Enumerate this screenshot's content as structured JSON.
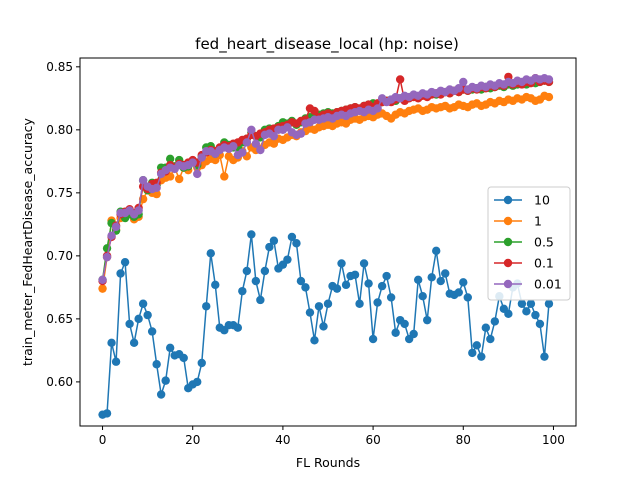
{
  "chart_data": {
    "type": "line",
    "title": "fed_heart_disease_local (hp: noise)",
    "xlabel": "FL Rounds",
    "ylabel": "train_meter_FedHeartDisease_accuracy",
    "xlim": [
      -5,
      105
    ],
    "ylim": [
      0.565,
      0.857
    ],
    "xticks": [
      0,
      20,
      40,
      60,
      80,
      100
    ],
    "yticks": [
      0.6,
      0.65,
      0.7,
      0.75,
      0.8,
      0.85
    ],
    "grid": false,
    "legend_position": "center-right",
    "marker": "circle",
    "series": [
      {
        "name": "10",
        "color": "#1f77b4",
        "x": [
          0,
          1,
          2,
          3,
          4,
          5,
          6,
          7,
          8,
          9,
          10,
          11,
          12,
          13,
          14,
          15,
          16,
          17,
          18,
          19,
          20,
          21,
          22,
          23,
          24,
          25,
          26,
          27,
          28,
          29,
          30,
          31,
          32,
          33,
          34,
          35,
          36,
          37,
          38,
          39,
          40,
          41,
          42,
          43,
          44,
          45,
          46,
          47,
          48,
          49,
          50,
          51,
          52,
          53,
          54,
          55,
          56,
          57,
          58,
          59,
          60,
          61,
          62,
          63,
          64,
          65,
          66,
          67,
          68,
          69,
          70,
          71,
          72,
          73,
          74,
          75,
          76,
          77,
          78,
          79,
          80,
          81,
          82,
          83,
          84,
          85,
          86,
          87,
          88,
          89,
          90,
          91,
          92,
          93,
          94,
          95,
          96,
          97,
          98,
          99
        ],
        "y": [
          0.574,
          0.575,
          0.631,
          0.616,
          0.686,
          0.695,
          0.646,
          0.631,
          0.65,
          0.662,
          0.653,
          0.64,
          0.614,
          0.59,
          0.601,
          0.627,
          0.621,
          0.622,
          0.619,
          0.595,
          0.598,
          0.6,
          0.615,
          0.66,
          0.702,
          0.677,
          0.643,
          0.641,
          0.645,
          0.645,
          0.643,
          0.672,
          0.688,
          0.717,
          0.68,
          0.665,
          0.688,
          0.707,
          0.712,
          0.69,
          0.693,
          0.697,
          0.715,
          0.71,
          0.68,
          0.675,
          0.655,
          0.633,
          0.66,
          0.644,
          0.662,
          0.676,
          0.674,
          0.694,
          0.677,
          0.684,
          0.685,
          0.662,
          0.694,
          0.678,
          0.634,
          0.663,
          0.676,
          0.684,
          0.667,
          0.639,
          0.649,
          0.646,
          0.634,
          0.638,
          0.681,
          0.668,
          0.649,
          0.683,
          0.704,
          0.68,
          0.686,
          0.67,
          0.669,
          0.671,
          0.679,
          0.667,
          0.623,
          0.629,
          0.62,
          0.643,
          0.634,
          0.648,
          0.668,
          0.658,
          0.654,
          0.675,
          0.678,
          0.662,
          0.656,
          0.662,
          0.653,
          0.646,
          0.62,
          0.662
        ]
      },
      {
        "name": "1",
        "color": "#ff7f0e",
        "x": [
          0,
          1,
          2,
          3,
          4,
          5,
          6,
          7,
          8,
          9,
          10,
          11,
          12,
          13,
          14,
          15,
          16,
          17,
          18,
          19,
          20,
          21,
          22,
          23,
          24,
          25,
          26,
          27,
          28,
          29,
          30,
          31,
          32,
          33,
          34,
          35,
          36,
          37,
          38,
          39,
          40,
          41,
          42,
          43,
          44,
          45,
          46,
          47,
          48,
          49,
          50,
          51,
          52,
          53,
          54,
          55,
          56,
          57,
          58,
          59,
          60,
          61,
          62,
          63,
          64,
          65,
          66,
          67,
          68,
          69,
          70,
          71,
          72,
          73,
          74,
          75,
          76,
          77,
          78,
          79,
          80,
          81,
          82,
          83,
          84,
          85,
          86,
          87,
          88,
          89,
          90,
          91,
          92,
          93,
          94,
          95,
          96,
          97,
          98,
          99
        ],
        "y": [
          0.674,
          0.699,
          0.728,
          0.721,
          0.73,
          0.733,
          0.736,
          0.729,
          0.731,
          0.745,
          0.752,
          0.75,
          0.749,
          0.76,
          0.762,
          0.763,
          0.77,
          0.761,
          0.77,
          0.768,
          0.775,
          0.77,
          0.772,
          0.775,
          0.777,
          0.776,
          0.78,
          0.763,
          0.779,
          0.776,
          0.778,
          0.783,
          0.779,
          0.786,
          0.784,
          0.785,
          0.788,
          0.79,
          0.789,
          0.793,
          0.792,
          0.794,
          0.796,
          0.795,
          0.798,
          0.799,
          0.801,
          0.8,
          0.802,
          0.803,
          0.804,
          0.803,
          0.805,
          0.806,
          0.805,
          0.808,
          0.809,
          0.808,
          0.81,
          0.811,
          0.81,
          0.812,
          0.813,
          0.811,
          0.809,
          0.812,
          0.814,
          0.813,
          0.815,
          0.816,
          0.817,
          0.815,
          0.816,
          0.818,
          0.817,
          0.818,
          0.819,
          0.817,
          0.818,
          0.82,
          0.819,
          0.818,
          0.82,
          0.821,
          0.819,
          0.82,
          0.822,
          0.821,
          0.823,
          0.822,
          0.824,
          0.823,
          0.825,
          0.824,
          0.826,
          0.825,
          0.823,
          0.824,
          0.827,
          0.826
        ]
      },
      {
        "name": "0.5",
        "color": "#2ca02c",
        "x": [
          0,
          1,
          2,
          3,
          4,
          5,
          6,
          7,
          8,
          9,
          10,
          11,
          12,
          13,
          14,
          15,
          16,
          17,
          18,
          19,
          20,
          21,
          22,
          23,
          24,
          25,
          26,
          27,
          28,
          29,
          30,
          31,
          32,
          33,
          34,
          35,
          36,
          37,
          38,
          39,
          40,
          41,
          42,
          43,
          44,
          45,
          46,
          47,
          48,
          49,
          50,
          51,
          52,
          53,
          54,
          55,
          56,
          57,
          58,
          59,
          60,
          61,
          62,
          63,
          64,
          65,
          66,
          67,
          68,
          69,
          70,
          71,
          72,
          73,
          74,
          75,
          76,
          77,
          78,
          79,
          80,
          81,
          82,
          83,
          84,
          85,
          86,
          87,
          88,
          89,
          90,
          91,
          92,
          93,
          94,
          95,
          96,
          97,
          98,
          99
        ],
        "y": [
          0.681,
          0.706,
          0.726,
          0.72,
          0.735,
          0.73,
          0.733,
          0.731,
          0.733,
          0.76,
          0.752,
          0.758,
          0.756,
          0.77,
          0.77,
          0.777,
          0.771,
          0.776,
          0.77,
          0.771,
          0.775,
          0.772,
          0.779,
          0.786,
          0.787,
          0.781,
          0.785,
          0.79,
          0.788,
          0.786,
          0.786,
          0.79,
          0.793,
          0.798,
          0.795,
          0.794,
          0.8,
          0.801,
          0.799,
          0.803,
          0.806,
          0.805,
          0.807,
          0.804,
          0.806,
          0.809,
          0.81,
          0.811,
          0.812,
          0.813,
          0.814,
          0.813,
          0.814,
          0.815,
          0.816,
          0.817,
          0.818,
          0.816,
          0.819,
          0.82,
          0.821,
          0.82,
          0.822,
          0.823,
          0.824,
          0.823,
          0.825,
          0.824,
          0.826,
          0.827,
          0.826,
          0.828,
          0.827,
          0.829,
          0.828,
          0.829,
          0.83,
          0.829,
          0.831,
          0.83,
          0.832,
          0.831,
          0.832,
          0.833,
          0.832,
          0.834,
          0.833,
          0.834,
          0.835,
          0.834,
          0.836,
          0.835,
          0.836,
          0.837,
          0.836,
          0.838,
          0.837,
          0.838,
          0.839,
          0.838
        ]
      },
      {
        "name": "0.1",
        "color": "#d62728",
        "x": [
          0,
          1,
          2,
          3,
          4,
          5,
          6,
          7,
          8,
          9,
          10,
          11,
          12,
          13,
          14,
          15,
          16,
          17,
          18,
          19,
          20,
          21,
          22,
          23,
          24,
          25,
          26,
          27,
          28,
          29,
          30,
          31,
          32,
          33,
          34,
          35,
          36,
          37,
          38,
          39,
          40,
          41,
          42,
          43,
          44,
          45,
          46,
          47,
          48,
          49,
          50,
          51,
          52,
          53,
          54,
          55,
          56,
          57,
          58,
          59,
          60,
          61,
          62,
          63,
          64,
          65,
          66,
          67,
          68,
          69,
          70,
          71,
          72,
          73,
          74,
          75,
          76,
          77,
          78,
          79,
          80,
          81,
          82,
          83,
          84,
          85,
          86,
          87,
          88,
          89,
          90,
          91,
          92,
          93,
          94,
          95,
          96,
          97,
          98,
          99
        ],
        "y": [
          0.68,
          0.7,
          0.715,
          0.724,
          0.733,
          0.735,
          0.737,
          0.734,
          0.738,
          0.755,
          0.753,
          0.757,
          0.758,
          0.766,
          0.767,
          0.772,
          0.77,
          0.773,
          0.772,
          0.774,
          0.776,
          0.774,
          0.78,
          0.782,
          0.784,
          0.783,
          0.786,
          0.788,
          0.787,
          0.789,
          0.79,
          0.792,
          0.793,
          0.796,
          0.795,
          0.797,
          0.798,
          0.8,
          0.801,
          0.802,
          0.803,
          0.804,
          0.806,
          0.805,
          0.807,
          0.808,
          0.817,
          0.815,
          0.81,
          0.812,
          0.813,
          0.812,
          0.814,
          0.815,
          0.816,
          0.817,
          0.818,
          0.817,
          0.819,
          0.82,
          0.818,
          0.821,
          0.822,
          0.823,
          0.822,
          0.824,
          0.84,
          0.823,
          0.825,
          0.826,
          0.825,
          0.827,
          0.826,
          0.828,
          0.829,
          0.828,
          0.83,
          0.829,
          0.831,
          0.83,
          0.832,
          0.831,
          0.833,
          0.832,
          0.834,
          0.833,
          0.835,
          0.834,
          0.836,
          0.835,
          0.842,
          0.836,
          0.837,
          0.836,
          0.838,
          0.837,
          0.841,
          0.838,
          0.839,
          0.838
        ]
      },
      {
        "name": "0.01",
        "color": "#9467bd",
        "x": [
          0,
          1,
          2,
          3,
          4,
          5,
          6,
          7,
          8,
          9,
          10,
          11,
          12,
          13,
          14,
          15,
          16,
          17,
          18,
          19,
          20,
          21,
          22,
          23,
          24,
          25,
          26,
          27,
          28,
          29,
          30,
          31,
          32,
          33,
          34,
          35,
          36,
          37,
          38,
          39,
          40,
          41,
          42,
          43,
          44,
          45,
          46,
          47,
          48,
          49,
          50,
          51,
          52,
          53,
          54,
          55,
          56,
          57,
          58,
          59,
          60,
          61,
          62,
          63,
          64,
          65,
          66,
          67,
          68,
          69,
          70,
          71,
          72,
          73,
          74,
          75,
          76,
          77,
          78,
          79,
          80,
          81,
          82,
          83,
          84,
          85,
          86,
          87,
          88,
          89,
          90,
          91,
          92,
          93,
          94,
          95,
          96,
          97,
          98,
          99
        ],
        "y": [
          0.681,
          0.699,
          0.716,
          0.723,
          0.734,
          0.734,
          0.736,
          0.733,
          0.736,
          0.76,
          0.755,
          0.753,
          0.754,
          0.765,
          0.768,
          0.77,
          0.769,
          0.772,
          0.771,
          0.772,
          0.774,
          0.765,
          0.778,
          0.783,
          0.783,
          0.781,
          0.784,
          0.786,
          0.785,
          0.787,
          0.78,
          0.782,
          0.79,
          0.8,
          0.789,
          0.784,
          0.796,
          0.797,
          0.795,
          0.8,
          0.8,
          0.802,
          0.798,
          0.796,
          0.797,
          0.805,
          0.806,
          0.808,
          0.808,
          0.809,
          0.81,
          0.809,
          0.811,
          0.812,
          0.811,
          0.813,
          0.814,
          0.815,
          0.814,
          0.816,
          0.815,
          0.817,
          0.825,
          0.822,
          0.824,
          0.826,
          0.825,
          0.827,
          0.826,
          0.828,
          0.827,
          0.829,
          0.828,
          0.83,
          0.829,
          0.831,
          0.83,
          0.832,
          0.831,
          0.833,
          0.838,
          0.832,
          0.834,
          0.833,
          0.835,
          0.834,
          0.836,
          0.835,
          0.837,
          0.836,
          0.838,
          0.837,
          0.839,
          0.838,
          0.84,
          0.839,
          0.841,
          0.84,
          0.841,
          0.84
        ]
      }
    ]
  }
}
